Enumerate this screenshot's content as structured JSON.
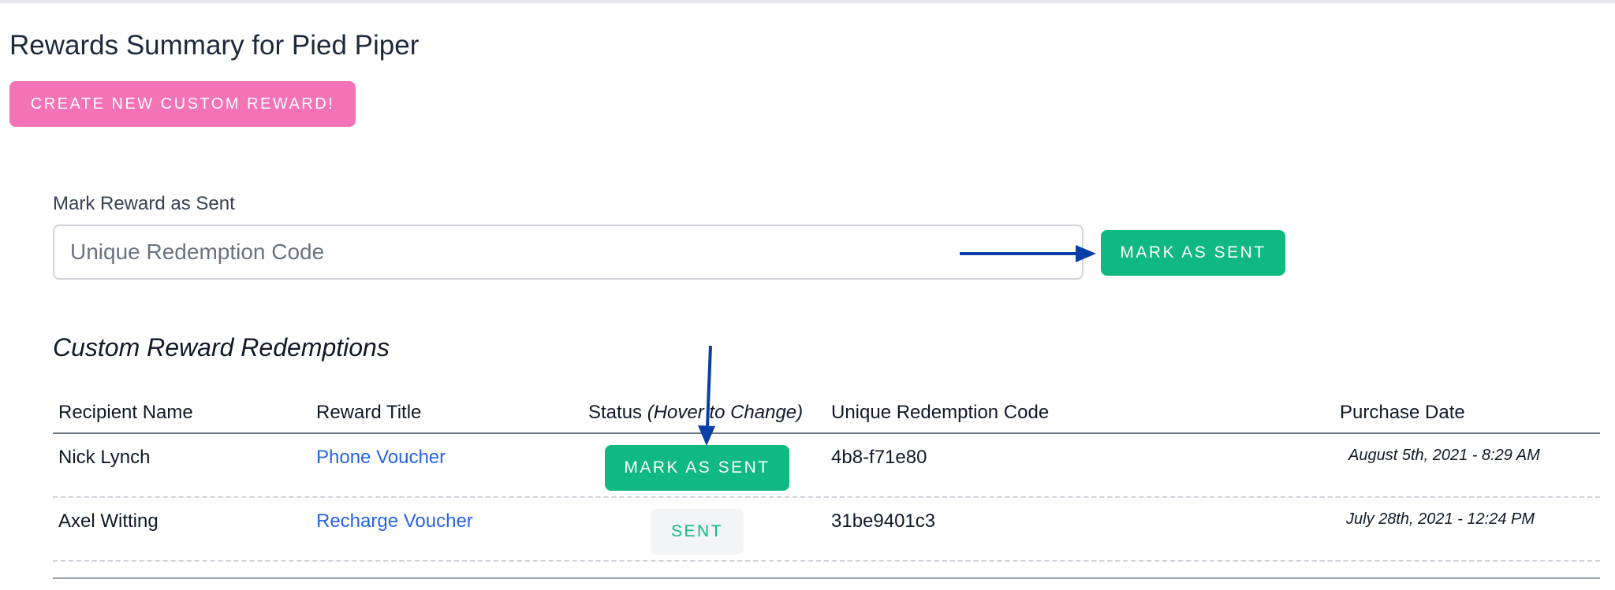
{
  "page": {
    "title": "Rewards Summary for Pied Piper",
    "create_button_label": "Create New Custom Reward!"
  },
  "mark_sent": {
    "label": "Mark Reward as Sent",
    "input_placeholder": "Unique Redemption Code",
    "input_value": "",
    "button_label": "Mark as Sent"
  },
  "redemptions": {
    "title": "Custom Reward Redemptions",
    "columns": {
      "recipient": "Recipient Name",
      "reward": "Reward Title",
      "status": "Status",
      "status_hint": "(Hover to Change)",
      "code": "Unique Redemption Code",
      "date": "Purchase Date"
    },
    "rows": [
      {
        "recipient": "Nick Lynch",
        "reward": "Phone Voucher",
        "status_label": "Mark as Sent",
        "code": "4b8-f71e80",
        "date": "August 5th, 2021 - 8:29 AM"
      },
      {
        "recipient": "Axel Witting",
        "reward": "Recharge Voucher",
        "status_label": "Sent",
        "code": "31be9401c3",
        "date": "July 28th, 2021 - 12:24 PM"
      }
    ]
  },
  "colors": {
    "accent_pink": "#f472b6",
    "accent_green": "#10b981",
    "link_blue": "#2563eb",
    "annotation_arrow": "#0b3fa8"
  }
}
